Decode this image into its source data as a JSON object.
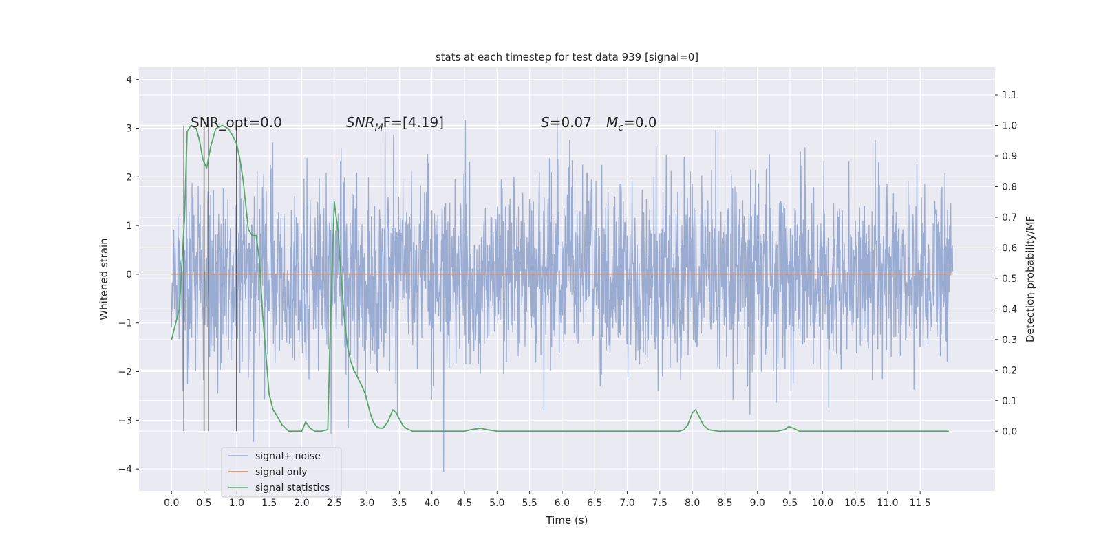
{
  "chart_data": {
    "type": "line",
    "title": "stats at each timestep for test data 939 [signal=0]",
    "xlabel": "Time (s)",
    "ylabel_left": "Whitened strain",
    "ylabel_right": "Detection probability/MF",
    "xlim": [
      -0.5,
      12.65
    ],
    "ylim_left": [
      -4.45,
      4.25
    ],
    "ylim_right": [
      -0.195,
      1.19
    ],
    "x_ticks": [
      "0.0",
      "0.5",
      "1.0",
      "1.5",
      "2.0",
      "2.5",
      "3.0",
      "3.5",
      "4.0",
      "4.5",
      "5.0",
      "5.5",
      "6.0",
      "6.5",
      "7.0",
      "7.5",
      "8.0",
      "8.5",
      "9.0",
      "9.5",
      "10.0",
      "10.5",
      "11.0",
      "11.5"
    ],
    "y_ticks_left": [
      "−4",
      "−3",
      "−2",
      "−1",
      "0",
      "1",
      "2",
      "3",
      "4"
    ],
    "y_ticks_right": [
      "0.0",
      "0.1",
      "0.2",
      "0.3",
      "0.4",
      "0.5",
      "0.6",
      "0.7",
      "0.8",
      "0.9",
      "1.0",
      "1.1"
    ],
    "grid": true,
    "legend_position": "lower-left",
    "annotations": {
      "snr_opt": "SNR_opt=0.0",
      "snr_mf_main": "SNR",
      "snr_mf_sub": "M",
      "snr_mf_rest": "F=[4.19]",
      "s_label": "S",
      "s_rest": "=0.07",
      "mc_label": "M",
      "mc_sub": "c",
      "mc_rest": "=0.0"
    },
    "vertical_markers": [
      0.19,
      0.5,
      0.57,
      1.0
    ],
    "series": [
      {
        "name": "signal+ noise",
        "color": "#9bacd3",
        "x_range": [
          0.0,
          12.0
        ],
        "std": 0.95,
        "y_range": [
          -4.1,
          3.85
        ]
      },
      {
        "name": "signal only",
        "color": "#dd8452",
        "x": [
          0.0,
          12.0
        ],
        "y": [
          0.0,
          0.0
        ]
      },
      {
        "name": "signal statistics",
        "color": "#55a868",
        "x": [
          0.0,
          0.12,
          0.2,
          0.24,
          0.3,
          0.38,
          0.43,
          0.48,
          0.54,
          0.6,
          0.68,
          0.78,
          0.87,
          0.93,
          1.0,
          1.05,
          1.1,
          1.18,
          1.24,
          1.3,
          1.35,
          1.4,
          1.45,
          1.5,
          1.56,
          1.62,
          1.7,
          1.8,
          1.9,
          2.0,
          2.06,
          2.13,
          2.2,
          2.3,
          2.4,
          2.44,
          2.5,
          2.56,
          2.6,
          2.65,
          2.7,
          2.75,
          2.8,
          2.85,
          2.92,
          2.98,
          3.05,
          3.1,
          3.15,
          3.2,
          3.25,
          3.32,
          3.4,
          3.45,
          3.5,
          3.55,
          3.6,
          3.65,
          3.7,
          3.8,
          3.9,
          4.0,
          4.5,
          4.6,
          4.75,
          4.85,
          5.0,
          5.5,
          6.0,
          7.0,
          7.8,
          7.87,
          7.93,
          8.0,
          8.05,
          8.1,
          8.17,
          8.25,
          8.4,
          8.8,
          9.3,
          9.42,
          9.48,
          9.55,
          9.65,
          9.8,
          10.5,
          11.94
        ],
        "y": [
          0.3,
          0.4,
          0.7,
          0.98,
          1.0,
          0.99,
          0.95,
          0.89,
          0.86,
          0.93,
          0.99,
          1.0,
          0.99,
          0.97,
          0.94,
          0.89,
          0.82,
          0.66,
          0.64,
          0.64,
          0.56,
          0.38,
          0.25,
          0.12,
          0.07,
          0.05,
          0.02,
          0.0,
          0.0,
          0.0,
          0.03,
          0.01,
          0.0,
          0.0,
          0.005,
          0.35,
          0.75,
          0.65,
          0.52,
          0.38,
          0.28,
          0.23,
          0.2,
          0.18,
          0.15,
          0.12,
          0.06,
          0.03,
          0.015,
          0.01,
          0.01,
          0.03,
          0.07,
          0.06,
          0.04,
          0.02,
          0.01,
          0.005,
          0.0,
          0.0,
          0.0,
          0.0,
          0.0,
          0.005,
          0.01,
          0.005,
          0.0,
          0.0,
          0.0,
          0.0,
          0.0,
          0.005,
          0.02,
          0.06,
          0.07,
          0.05,
          0.02,
          0.005,
          0.0,
          0.0,
          0.0,
          0.005,
          0.015,
          0.01,
          0.0,
          0.0,
          0.0,
          0.0
        ]
      }
    ]
  }
}
